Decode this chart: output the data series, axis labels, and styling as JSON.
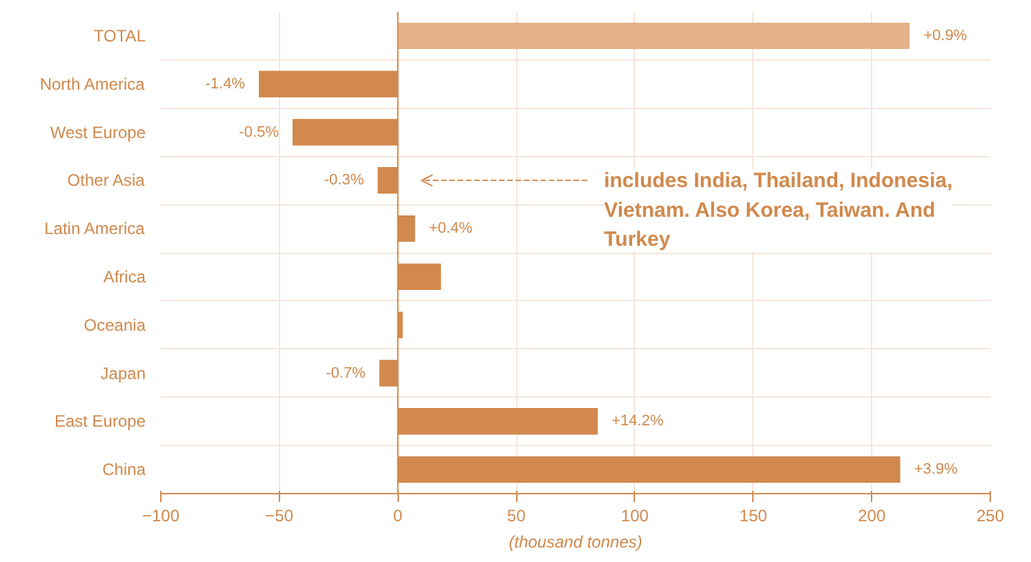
{
  "chart_data": {
    "type": "bar",
    "orientation": "horizontal",
    "xlabel": "(thousand tonnes)",
    "categories": [
      "TOTAL",
      "North America",
      "West Europe",
      "Other Asia",
      "Latin America",
      "Africa",
      "Oceania",
      "Japan",
      "East Europe",
      "China"
    ],
    "values": [
      216,
      -58.6,
      -44.4,
      -8.5,
      7.3,
      18.2,
      2.1,
      -7.8,
      84.4,
      212
    ],
    "colors": [
      "#e3b28a",
      "#d1894d",
      "#d1894d",
      "#d1894d",
      "#d1894d",
      "#d1894d",
      "#d1894d",
      "#d1894d",
      "#d1894d",
      "#d1894d"
    ],
    "xlim": [
      -100,
      250
    ],
    "xticks": [
      -100,
      -50,
      0,
      50,
      100,
      150,
      200,
      250
    ],
    "grid": true,
    "ref_lines": [
      {
        "axis": "x",
        "value": 0,
        "color": "#d1894d"
      }
    ],
    "annotations": [
      {
        "text": "+0.9%",
        "x": 216,
        "y": "TOTAL"
      },
      {
        "text": "-1.4%",
        "x": -58.6,
        "y": "North America"
      },
      {
        "text": "-0.5%",
        "x": -44.4,
        "y": "West Europe"
      },
      {
        "text": "-0.3%",
        "x": -8.5,
        "y": "Other Asia"
      },
      {
        "text": "+0.4%",
        "x": 7.3,
        "y": "Latin America"
      },
      {
        "text": "-0.7%",
        "x": -7.8,
        "y": "Japan"
      },
      {
        "text": "+14.2%",
        "x": 84.4,
        "y": "East Europe"
      },
      {
        "text": "+3.9%",
        "x": 212,
        "y": "China"
      },
      "includes India, Thailand, Indonesia, Vietnam. Also Korea, Taiwan. And Turkey"
    ]
  }
}
